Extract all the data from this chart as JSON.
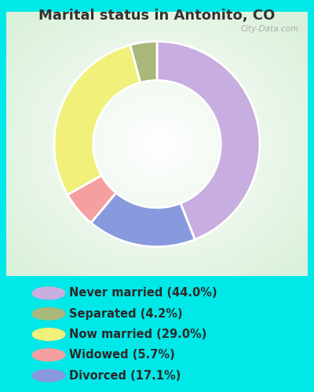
{
  "title": "Marital status in Antonito, CO",
  "categories": [
    "Never married",
    "Separated",
    "Now married",
    "Widowed",
    "Divorced"
  ],
  "values": [
    44.0,
    4.2,
    29.0,
    5.7,
    17.1
  ],
  "colors": [
    "#c8aee0",
    "#a8b87a",
    "#f0f07a",
    "#f5a0a0",
    "#8899dd"
  ],
  "legend_labels": [
    "Never married (44.0%)",
    "Separated (4.2%)",
    "Now married (29.0%)",
    "Widowed (5.7%)",
    "Divorced (17.1%)"
  ],
  "legend_colors": [
    "#c8aee0",
    "#a8b87a",
    "#f0f07a",
    "#f5a0a0",
    "#8899dd"
  ],
  "background_cyan": "#00e8e8",
  "title_color": "#333333",
  "title_fontsize": 13,
  "legend_fontsize": 10.5,
  "watermark": "City-Data.com",
  "donut_width": 0.38,
  "chart_order": [
    0,
    4,
    3,
    2,
    1
  ],
  "startangle": 90
}
